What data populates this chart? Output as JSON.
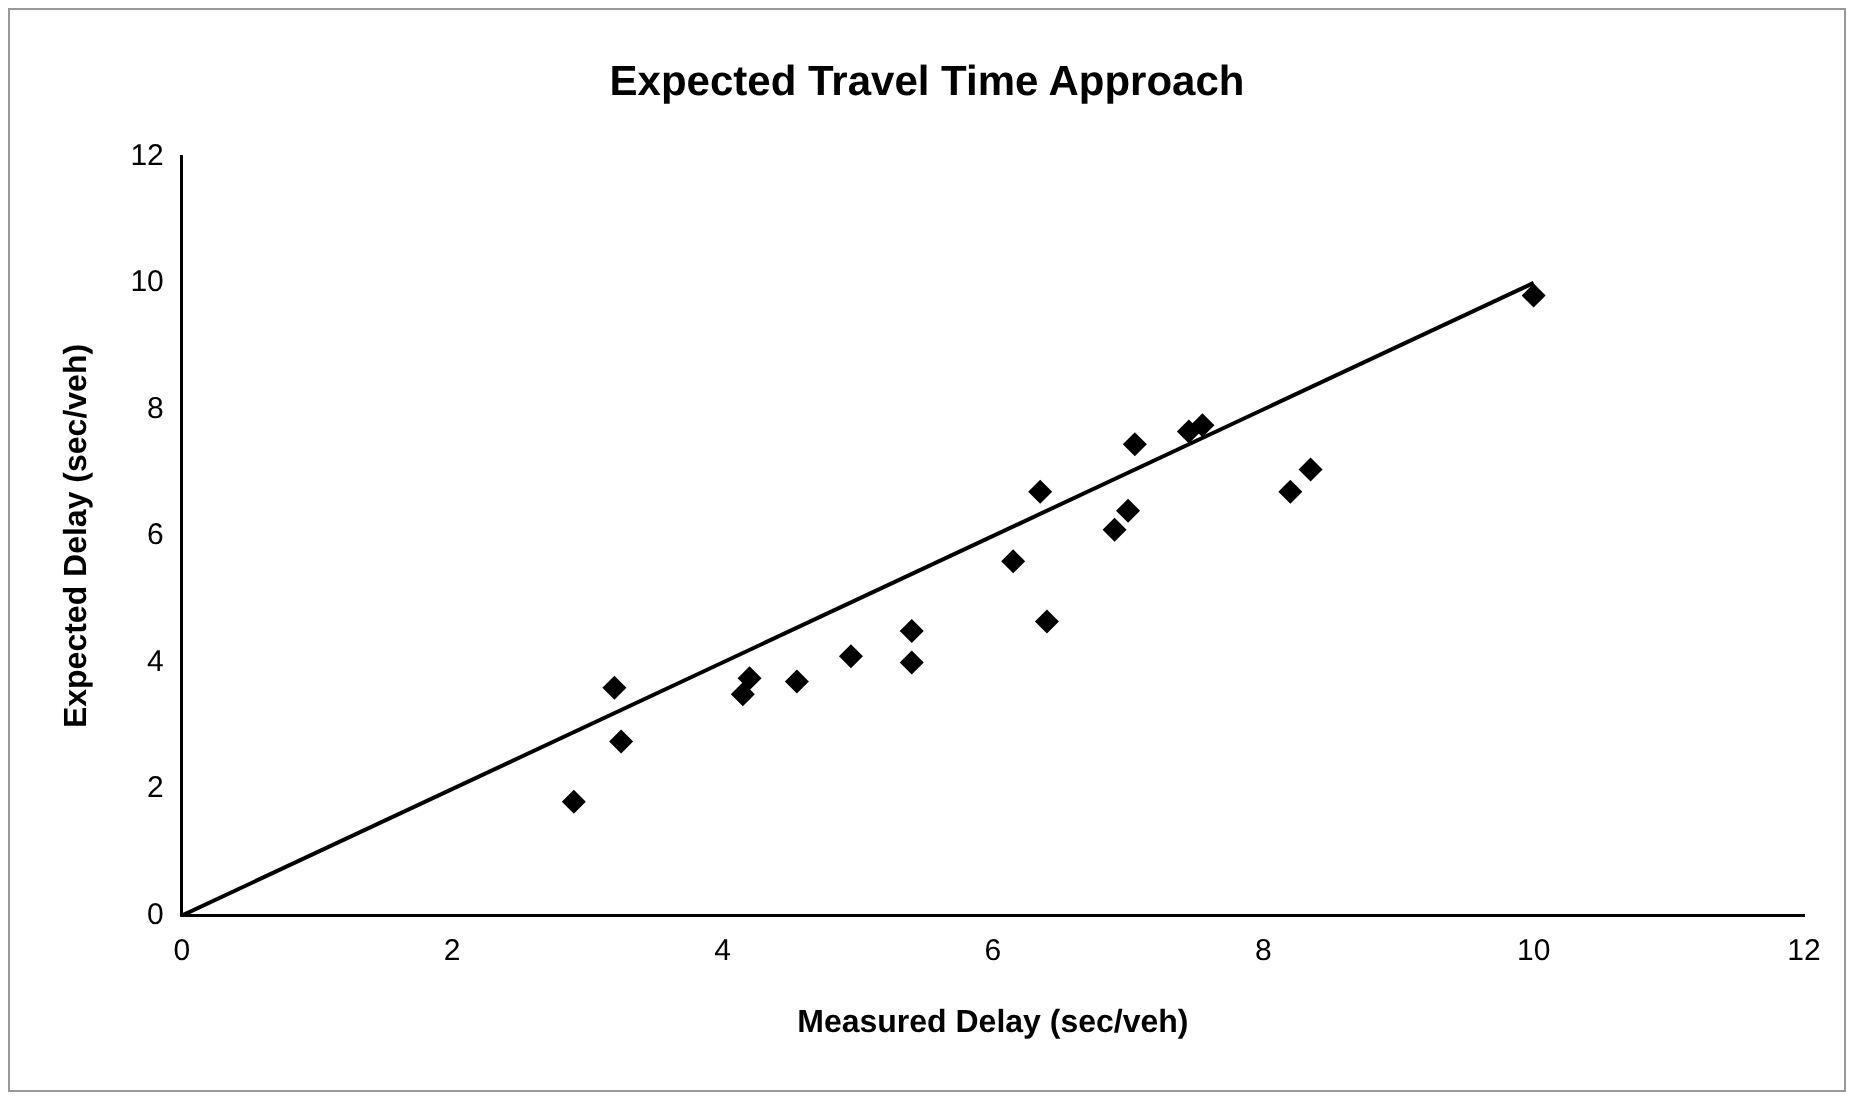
{
  "chart_data": {
    "type": "scatter",
    "title": "Expected Travel Time Approach",
    "xlabel": "Measured Delay (sec/veh)",
    "ylabel": "Expected Delay (sec/veh)",
    "xlim": [
      0,
      12
    ],
    "xticks": [
      0,
      2,
      4,
      6,
      8,
      10,
      12
    ],
    "ylim": [
      0,
      12
    ],
    "yticks": [
      0,
      2,
      4,
      6,
      8,
      10,
      12
    ],
    "grid": false,
    "legend": false,
    "marker": "diamond",
    "series": [
      {
        "color": "#000000",
        "x": [
          2.9,
          3.2,
          3.25,
          4.15,
          4.2,
          4.55,
          4.95,
          5.4,
          5.4,
          6.15,
          6.35,
          6.4,
          6.9,
          7.0,
          7.05,
          7.45,
          7.55,
          8.2,
          8.35,
          10.0
        ],
        "values": [
          1.8,
          3.6,
          2.75,
          3.5,
          3.75,
          3.7,
          4.1,
          4.5,
          4.0,
          5.6,
          6.7,
          4.65,
          6.1,
          6.4,
          7.45,
          7.65,
          7.75,
          6.7,
          7.05,
          9.8
        ]
      },
      {
        "type": "line",
        "color": "#000000",
        "marker": "none",
        "x": [
          0,
          10
        ],
        "values": [
          0,
          10
        ]
      }
    ]
  }
}
